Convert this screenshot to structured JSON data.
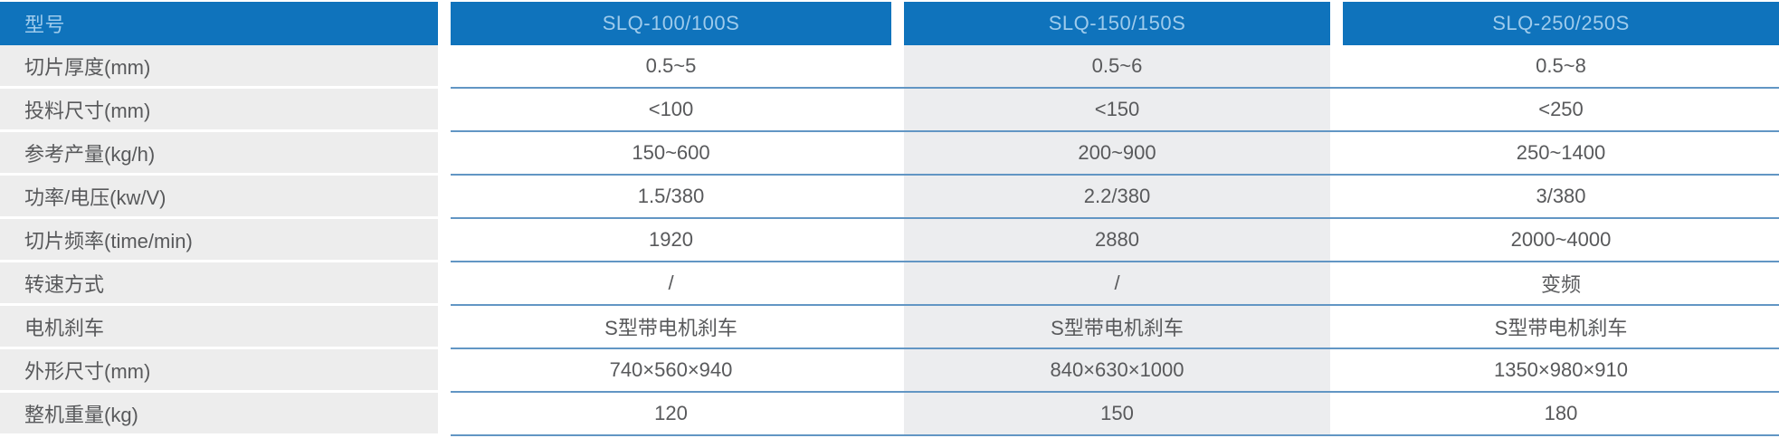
{
  "table": {
    "header": {
      "label": "型号",
      "models": [
        "SLQ-100/100S",
        "SLQ-150/150S",
        "SLQ-250/250S"
      ]
    },
    "rows": [
      {
        "label": "切片厚度(mm)",
        "values": [
          "0.5~5",
          "0.5~6",
          "0.5~8"
        ]
      },
      {
        "label": "投料尺寸(mm)",
        "values": [
          "<100",
          "<150",
          "<250"
        ]
      },
      {
        "label": "参考产量(kg/h)",
        "values": [
          "150~600",
          "200~900",
          "250~1400"
        ]
      },
      {
        "label": "功率/电压(kw/V)",
        "values": [
          "1.5/380",
          "2.2/380",
          "3/380"
        ]
      },
      {
        "label": "切片频率(time/min)",
        "values": [
          "1920",
          "2880",
          "2000~4000"
        ]
      },
      {
        "label": "转速方式",
        "values": [
          "/",
          "/",
          "变频"
        ]
      },
      {
        "label": "电机刹车",
        "values": [
          "S型带电机刹车",
          "S型带电机刹车",
          "S型带电机刹车"
        ]
      },
      {
        "label": "外形尺寸(mm)",
        "values": [
          "740×560×940",
          "840×630×1000",
          "1350×980×910"
        ]
      },
      {
        "label": "整机重量(kg)",
        "values": [
          "120",
          "150",
          "180"
        ]
      }
    ]
  },
  "colors": {
    "header_bg": "#0f73bc",
    "header_text": "#9ecbec",
    "label_bg": "#ededed",
    "alt_col_bg": "#ecedef",
    "body_text": "#58595b",
    "row_line": "#6296c4"
  }
}
